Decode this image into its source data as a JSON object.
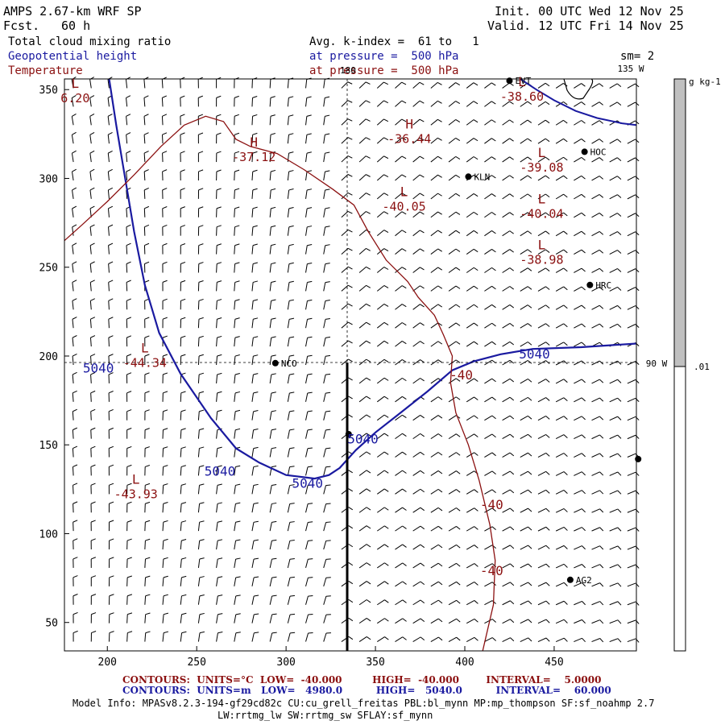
{
  "header": {
    "model_title": "AMPS 2.67-km WRF SP",
    "forecast_label": "Fcst.",
    "forecast_value": "60 h",
    "init_line": "Init. 00 UTC Wed 12 Nov 25",
    "valid_line": "Valid. 12 UTC Fri 14 Nov 25",
    "field_1": "Total cloud mixing ratio",
    "field_2": "Geopotential height",
    "field_3": "Temperature",
    "avg_line": "Avg. k-index =  61 to   1",
    "pressure_line_1": "at pressure =  500 hPa",
    "pressure_line_2": "at pressure =  500 hPa",
    "smoothing": "sm= 2"
  },
  "map_labels": {
    "lon_180": "180",
    "lon_135w": "135 W",
    "lon_90w": "90 W"
  },
  "colorbar": {
    "units": "g kg-1",
    "tick_value": ".01",
    "upper_color": "#c0c0c0",
    "lower_color": "#ffffff"
  },
  "stations": [
    {
      "name": "EVT",
      "x": 425,
      "y": 355
    },
    {
      "name": "HOC",
      "x": 467,
      "y": 315
    },
    {
      "name": "KLN",
      "x": 402,
      "y": 301
    },
    {
      "name": "HRC",
      "x": 470,
      "y": 240
    },
    {
      "name": "NCO",
      "x": 294,
      "y": 196
    },
    {
      "name": "",
      "x": 335,
      "y": 156
    },
    {
      "name": "",
      "x": 497,
      "y": 142
    },
    {
      "name": "AG2",
      "x": 459,
      "y": 74
    }
  ],
  "extrema": [
    {
      "kind": "L",
      "value": "6.20",
      "x": 182,
      "y": 351
    },
    {
      "kind": "H",
      "value": "-37.12",
      "x": 282,
      "y": 318
    },
    {
      "kind": "H",
      "value": "-36.44",
      "x": 369,
      "y": 328
    },
    {
      "kind": "L",
      "value": "-38.60",
      "x": 432,
      "y": 352
    },
    {
      "kind": "L",
      "value": "-39.08",
      "x": 443,
      "y": 312
    },
    {
      "kind": "L",
      "value": "-40.05",
      "x": 366,
      "y": 290
    },
    {
      "kind": "L",
      "value": "-40.04",
      "x": 443,
      "y": 286
    },
    {
      "kind": "L",
      "value": "-38.98",
      "x": 443,
      "y": 260
    },
    {
      "kind": "L",
      "value": "-44.34",
      "x": 221,
      "y": 202
    },
    {
      "kind": "L",
      "value": "-43.93",
      "x": 216,
      "y": 128
    }
  ],
  "contour_labels": [
    {
      "text": "5040",
      "series": "height",
      "x": 195,
      "y": 193
    },
    {
      "text": "5040",
      "series": "height",
      "x": 263,
      "y": 135
    },
    {
      "text": "5040",
      "series": "height",
      "x": 312,
      "y": 128
    },
    {
      "text": "5040",
      "series": "height",
      "x": 343,
      "y": 153
    },
    {
      "text": "5040",
      "series": "height",
      "x": 439,
      "y": 201
    },
    {
      "text": "-40",
      "series": "temperature",
      "x": 398,
      "y": 189
    },
    {
      "text": "-40",
      "series": "temperature",
      "x": 415,
      "y": 116
    },
    {
      "text": "-40",
      "series": "temperature",
      "x": 415,
      "y": 79
    }
  ],
  "footer": {
    "temp_contours": "CONTOURS:  UNITS=°C  LOW=  -40.000         HIGH=  -40.000        INTERVAL=    5.0000",
    "height_contours": "CONTOURS:  UNITS=m   LOW=   4980.0          HIGH=   5040.0          INTERVAL=    60.000",
    "model_info_1": "Model Info: MPASv8.2.3-194-gf29cd82c CU:cu_grell_freitas PBL:bl_mynn MP:mp_thompson SF:sf_noahmp 2.7",
    "model_info_2": "LW:rrtmg_lw SW:rrtmg_sw SFLAY:sf_mynn"
  },
  "chart_data": {
    "type": "map",
    "x_ticks": [
      200,
      250,
      300,
      350,
      400,
      450
    ],
    "y_ticks": [
      50,
      100,
      150,
      200,
      250,
      300,
      350
    ],
    "xlim": [
      176,
      496
    ],
    "ylim": [
      34,
      356
    ],
    "grid": false,
    "colors": {
      "height_contour": "#1a1aa0",
      "temperature_contour": "#8b1010",
      "coastline": "#1a1aa0",
      "barbs": "#000000"
    },
    "series": [
      {
        "name": "Geopotential height",
        "level": "5040",
        "points": [
          [
            201,
            356
          ],
          [
            205,
            330
          ],
          [
            210,
            300
          ],
          [
            215,
            270
          ],
          [
            221,
            240
          ],
          [
            229,
            213
          ],
          [
            241,
            190
          ],
          [
            258,
            165
          ],
          [
            272,
            148
          ],
          [
            285,
            140
          ],
          [
            300,
            133
          ],
          [
            316,
            131
          ],
          [
            324,
            133
          ],
          [
            330,
            137
          ],
          [
            339,
            147
          ],
          [
            350,
            157
          ],
          [
            364,
            168
          ],
          [
            379,
            180
          ],
          [
            393,
            192
          ],
          [
            405,
            197
          ],
          [
            420,
            201
          ],
          [
            438,
            204
          ],
          [
            465,
            205
          ],
          [
            496,
            207
          ]
        ]
      },
      {
        "name": "Temperature",
        "level": "-40",
        "points": [
          [
            176,
            265
          ],
          [
            186,
            274
          ],
          [
            200,
            287
          ],
          [
            215,
            302
          ],
          [
            230,
            318
          ],
          [
            243,
            330
          ],
          [
            255,
            335
          ],
          [
            265,
            332
          ],
          [
            272,
            322
          ],
          [
            280,
            318
          ],
          [
            295,
            314
          ],
          [
            310,
            305
          ],
          [
            326,
            294
          ],
          [
            338,
            285
          ],
          [
            346,
            270
          ],
          [
            356,
            254
          ],
          [
            368,
            242
          ],
          [
            374,
            233
          ],
          [
            383,
            223
          ],
          [
            388,
            212
          ],
          [
            393,
            200
          ],
          [
            392,
            185
          ],
          [
            395,
            168
          ],
          [
            402,
            150
          ],
          [
            408,
            130
          ],
          [
            414,
            105
          ],
          [
            417,
            85
          ],
          [
            416,
            60
          ],
          [
            410,
            34
          ]
        ]
      },
      {
        "name": "",
        "level": "coastline",
        "points": [
          [
            431,
            356
          ],
          [
            440,
            350
          ],
          [
            450,
            344
          ],
          [
            462,
            338
          ],
          [
            474,
            334
          ],
          [
            488,
            331
          ],
          [
            496,
            330
          ]
        ]
      }
    ],
    "barb_counts": {
      "columns": 32,
      "rows": 31
    }
  }
}
